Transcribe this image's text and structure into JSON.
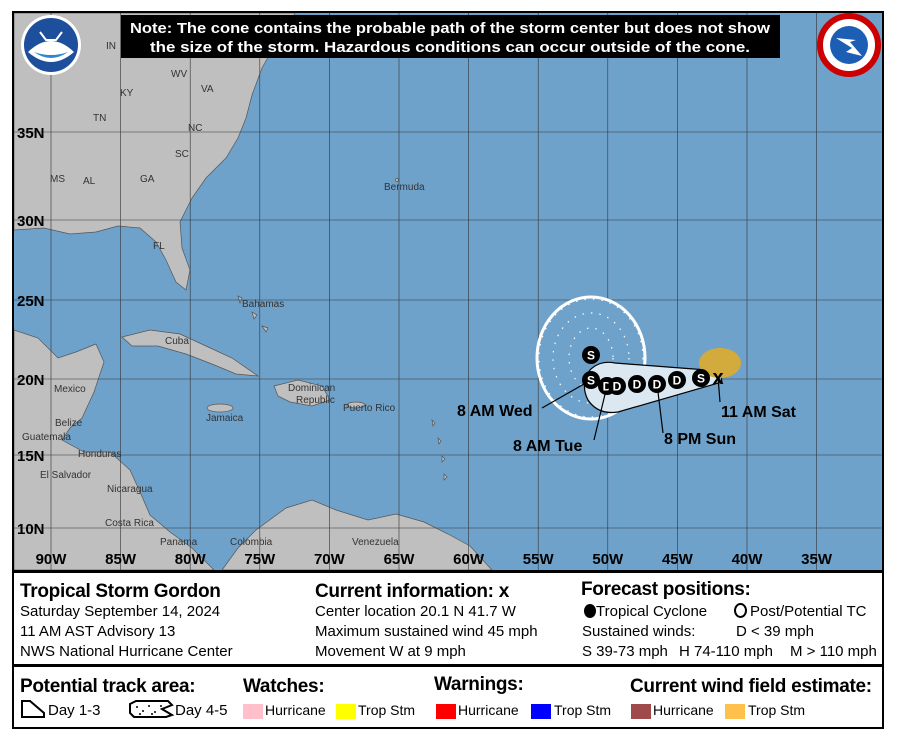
{
  "note": {
    "line1": "Note: The cone contains the probable path of the storm center but does not show",
    "line2": "the size of the storm. Hazardous conditions can occur outside of the cone."
  },
  "logos": {
    "left": "NOAA",
    "right": "NATIONAL WEATHER SERVICE"
  },
  "colors": {
    "ocean": "#6ea2cb",
    "land": "#bfbfbf",
    "cone": "#dbe8f1",
    "wind_field_trop_stm": "#d3ab3c",
    "watch_hurricane": "#ffc0cb",
    "watch_trop_stm": "#ffff00",
    "warning_hurricane": "#ff0000",
    "warning_trop_stm": "#0000ff",
    "wind_hurricane": "#a04b4b",
    "wind_trop_stm": "#ffc04c"
  },
  "map": {
    "lon_labels": [
      "90W",
      "85W",
      "80W",
      "75W",
      "70W",
      "65W",
      "60W",
      "55W",
      "50W",
      "45W",
      "40W",
      "35W"
    ],
    "lat_labels": [
      "35N",
      "30N",
      "25N",
      "20N",
      "15N",
      "10N"
    ],
    "places": [
      "IN",
      "KY",
      "WV",
      "VA",
      "TN",
      "NC",
      "SC",
      "MS",
      "AL",
      "GA",
      "FL",
      "Bermuda",
      "Bahamas",
      "Cuba",
      "Mexico",
      "Dominican",
      "Republic",
      "Puerto Rico",
      "Jamaica",
      "Belize",
      "Guatemala",
      "Honduras",
      "El Salvador",
      "Nicaragua",
      "Costa Rica",
      "Panama",
      "Colombia",
      "Venezuela"
    ],
    "forecast_points": [
      "S",
      "S",
      "D",
      "D",
      "D",
      "D",
      "D",
      "S"
    ],
    "current_marker": "x",
    "time_labels": [
      "8 AM Wed",
      "8 AM Tue",
      "8 PM Sun",
      "11 AM Sat"
    ]
  },
  "info": {
    "storm_name": "Tropical Storm Gordon",
    "date": "Saturday September 14, 2024",
    "advisory": "11 AM AST Advisory 13",
    "office": "NWS National Hurricane Center",
    "current_title": "Current information:",
    "current_icon": "x",
    "center_location": "Center location 20.1 N 41.7 W",
    "max_wind": "Maximum sustained wind 45 mph",
    "movement": "Movement W at 9 mph",
    "forecast_title": "Forecast positions:",
    "tropical_cyclone": "Tropical Cyclone",
    "post_potential": "Post/Potential TC",
    "sustained_winds": "Sustained winds:",
    "d_def": "D < 39 mph",
    "s_def": "S 39-73 mph",
    "h_def": "H 74-110 mph",
    "m_def": "M > 110 mph"
  },
  "legend": {
    "track_title": "Potential track area:",
    "day13": "Day 1-3",
    "day45": "Day 4-5",
    "watches_title": "Watches:",
    "warnings_title": "Warnings:",
    "wind_title": "Current wind field estimate:",
    "hurricane": "Hurricane",
    "trop_stm": "Trop Stm"
  }
}
